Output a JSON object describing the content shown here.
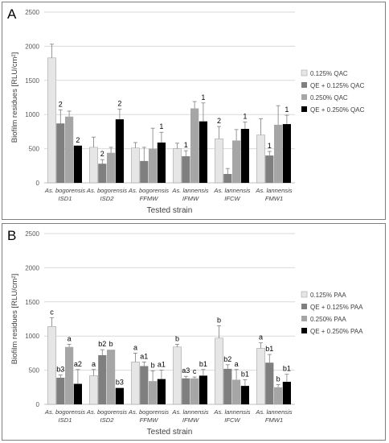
{
  "chart_data": [
    {
      "type": "bar",
      "panel_label": "A",
      "ylabel": "Biofilm residues [RLU/cm²]",
      "xlabel": "Tested strain",
      "ylim": [
        0,
        2500
      ],
      "yticks": [
        "0",
        "500",
        "1000",
        "1500",
        "2000",
        "2500"
      ],
      "categories": [
        [
          "As. bogorensis",
          "ISD1"
        ],
        [
          "As. bogorensis",
          "ISD2"
        ],
        [
          "As. bogorensis",
          "FFMW"
        ],
        [
          "As. lannensis",
          "IFMW"
        ],
        [
          "As. lannensis",
          "IFCW"
        ],
        [
          "As. lannensis",
          "FMW1"
        ]
      ],
      "series": [
        {
          "name": "0.125% QAC",
          "color": "#e7e6e6",
          "values": [
            1830,
            520,
            510,
            500,
            645,
            700
          ],
          "errors": [
            200,
            150,
            80,
            80,
            180,
            240
          ],
          "labels": [
            "",
            "",
            "",
            "",
            "2",
            ""
          ]
        },
        {
          "name": "QE + 0.125% QAC",
          "color": "#7f7f7f",
          "values": [
            870,
            280,
            320,
            390,
            130,
            400
          ],
          "errors": [
            200,
            60,
            200,
            80,
            80,
            60
          ],
          "labels": [
            "2",
            "2",
            "",
            "1",
            "",
            "1"
          ]
        },
        {
          "name": "0.250% QAC",
          "color": "#a6a6a6",
          "values": [
            970,
            440,
            500,
            1090,
            620,
            850
          ],
          "errors": [
            80,
            80,
            300,
            100,
            160,
            280
          ],
          "labels": [
            "",
            "",
            "",
            "",
            "",
            ""
          ]
        },
        {
          "name": "QE + 0.250% QAC",
          "color": "#000000",
          "values": [
            545,
            930,
            590,
            900,
            790,
            860
          ],
          "errors": [
            0,
            150,
            150,
            270,
            100,
            130
          ],
          "labels": [
            "2",
            "2",
            "1",
            "1",
            "1",
            "1"
          ]
        }
      ],
      "legend_position": "right"
    },
    {
      "type": "bar",
      "panel_label": "B",
      "ylabel": "Biofilm residues [RLU/cm²]",
      "xlabel": "Tested strain",
      "ylim": [
        0,
        2500
      ],
      "yticks": [
        "0",
        "500",
        "1000",
        "1500",
        "2000",
        "2500"
      ],
      "categories": [
        [
          "As. bogorensis",
          "ISD1"
        ],
        [
          "As. bogorensis",
          "ISD2"
        ],
        [
          "As. bogorensis",
          "FFMW"
        ],
        [
          "As. lannensis",
          "IFMW"
        ],
        [
          "As. lannensis",
          "IFCW"
        ],
        [
          "As. lannensis",
          "FMW1"
        ]
      ],
      "series": [
        {
          "name": "0.125% PAA",
          "color": "#e7e6e6",
          "values": [
            1140,
            420,
            620,
            840,
            970,
            820
          ],
          "errors": [
            130,
            90,
            130,
            40,
            180,
            80
          ],
          "labels": [
            "c",
            "a",
            "a",
            "b",
            "b",
            "a"
          ]
        },
        {
          "name": "QE + 0.125% PAA",
          "color": "#7f7f7f",
          "values": [
            390,
            720,
            560,
            380,
            520,
            610
          ],
          "errors": [
            40,
            80,
            60,
            30,
            60,
            120
          ],
          "labels": [
            "b3",
            "b2",
            "a1",
            "a3",
            "b2",
            "b1"
          ]
        },
        {
          "name": "0.250% PAA",
          "color": "#a6a6a6",
          "values": [
            840,
            800,
            340,
            380,
            360,
            250
          ],
          "errors": [
            40,
            0,
            150,
            20,
            150,
            40
          ],
          "labels": [
            "a",
            "b",
            "b",
            "c",
            "a",
            "b"
          ]
        },
        {
          "name": "QE + 0.250% PAA",
          "color": "#000000",
          "values": [
            300,
            240,
            370,
            420,
            270,
            330
          ],
          "errors": [
            210,
            0,
            130,
            90,
            90,
            110
          ],
          "labels": [
            "a2",
            "b3",
            "a1",
            "b1",
            "b1",
            "b1"
          ]
        }
      ],
      "legend_position": "right"
    }
  ]
}
